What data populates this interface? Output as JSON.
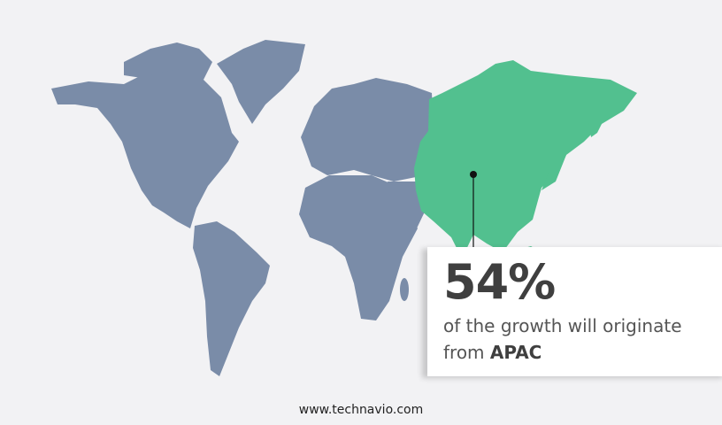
{
  "stat": {
    "value": "54%",
    "text": "of the growth will originate",
    "prefix": "from",
    "region": "APAC"
  },
  "footer": {
    "url": "www.technavio.com"
  },
  "colors": {
    "background": "#f2f2f4",
    "land": "#7a8ca8",
    "highlight": "#52c08f",
    "text": "#3f3f3f"
  },
  "map": {
    "highlighted_region": "APAC"
  }
}
